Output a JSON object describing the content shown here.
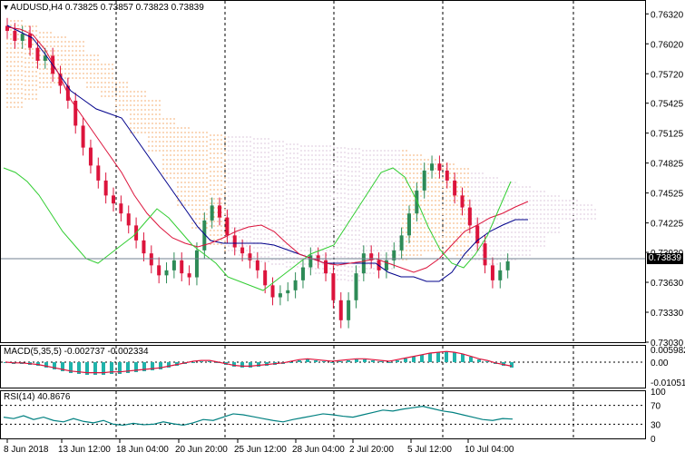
{
  "header": {
    "symbol_line": "AUDUSD,H4  0.73825 0.73857 0.73823 0.73839"
  },
  "current_price": "0.73839",
  "price_axis": [
    "0.76320",
    "0.76020",
    "0.75720",
    "0.75425",
    "0.75125",
    "0.74825",
    "0.74525",
    "0.74225",
    "0.73930",
    "0.73630",
    "0.73330",
    "0.73030"
  ],
  "macd": {
    "label": "MACD(5,35,5) -0.002737 -0.002334",
    "axis": [
      "0.005982",
      "0.00",
      "-0.01051"
    ]
  },
  "rsi": {
    "label": "RSI(14) 40.8676",
    "axis": [
      "100",
      "70",
      "30",
      "0"
    ]
  },
  "time_axis": [
    "8 Jun 2018",
    "13 Jun 12:00",
    "18 Jun 04:00",
    "20 Jun 20:00",
    "25 Jun 12:00",
    "28 Jun 04:00",
    "2 Jul 20:00",
    "5 Jul 12:00",
    "10 Jul 04:00"
  ],
  "colors": {
    "bull": "#2e8b57",
    "bear": "#dc143c",
    "kijun": "#00008b",
    "tenkan": "#dc143c",
    "chikou": "#32cd32",
    "cloud_a": "#f4a460",
    "cloud_b": "#d8bfd8",
    "macd_hist": "#20b2aa",
    "macd_signal": "#dc143c",
    "rsi_line": "#008080"
  },
  "chart_data": {
    "type": "candlestick",
    "title": "AUDUSD,H4",
    "ylim": [
      0.7303,
      0.7645
    ],
    "close_path": [
      0.7615,
      0.7605,
      0.7612,
      0.7598,
      0.7585,
      0.759,
      0.7572,
      0.756,
      0.7545,
      0.752,
      0.7498,
      0.748,
      0.7465,
      0.745,
      0.7442,
      0.7432,
      0.742,
      0.7405,
      0.7392,
      0.738,
      0.737,
      0.7375,
      0.7385,
      0.7372,
      0.7368,
      0.7395,
      0.7425,
      0.744,
      0.7428,
      0.741,
      0.7398,
      0.7392,
      0.7385,
      0.7375,
      0.736,
      0.7348,
      0.7352,
      0.7355,
      0.7365,
      0.7378,
      0.739,
      0.7385,
      0.7372,
      0.7345,
      0.7325,
      0.7345,
      0.7372,
      0.7392,
      0.7385,
      0.7375,
      0.7385,
      0.7395,
      0.741,
      0.7432,
      0.7455,
      0.7475,
      0.7482,
      0.7475,
      0.7465,
      0.745,
      0.7438,
      0.742,
      0.7402,
      0.738,
      0.7365,
      0.7375,
      0.7384
    ]
  }
}
